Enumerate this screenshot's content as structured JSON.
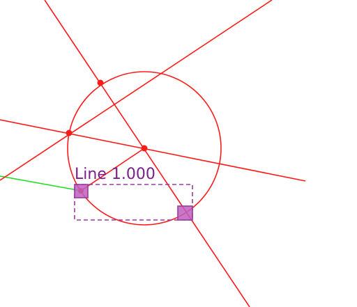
{
  "colors": {
    "geometry": "#ff1a1a",
    "highlight_line": "#22dd22",
    "selection": "#9a3aa0",
    "selection_fill": "#c060c0",
    "label": "#7a1f8a"
  },
  "selection": {
    "label": "Line 1.000"
  }
}
